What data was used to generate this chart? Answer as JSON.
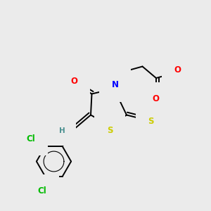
{
  "bg_color": "#ebebeb",
  "atom_colors": {
    "C": "#000000",
    "N": "#0000ff",
    "O": "#ff0000",
    "S": "#cccc00",
    "Cl": "#00bb00",
    "H": "#4a9090"
  },
  "bond_color": "#000000",
  "figsize": [
    3.0,
    3.0
  ],
  "dpi": 100,
  "xlim": [
    0,
    10
  ],
  "ylim": [
    0,
    10
  ]
}
